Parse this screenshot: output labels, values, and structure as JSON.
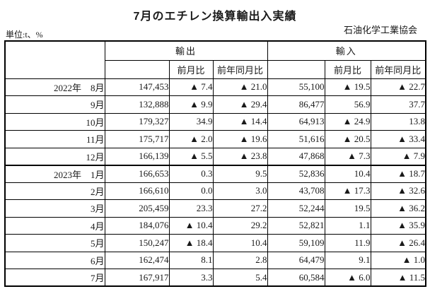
{
  "page": {
    "title": "7月のエチレン換算輸出入実績",
    "unit_label": "単位:t、%",
    "org_label": "石油化学工業協会"
  },
  "table": {
    "export_label": "輸出",
    "import_label": "輸入",
    "mom_label": "前月比",
    "yoy_label": "前年同月比",
    "rows": [
      {
        "year": "2022年",
        "month": "8月",
        "export_value": "147,453",
        "export_mom": "▲ 7.4",
        "export_yoy": "▲ 21.0",
        "import_value": "55,100",
        "import_mom": "▲ 19.5",
        "import_yoy": "▲ 22.7"
      },
      {
        "year": "",
        "month": "9月",
        "export_value": "132,888",
        "export_mom": "▲ 9.9",
        "export_yoy": "▲ 29.4",
        "import_value": "86,477",
        "import_mom": "56.9",
        "import_yoy": "37.7"
      },
      {
        "year": "",
        "month": "10月",
        "export_value": "179,327",
        "export_mom": "34.9",
        "export_yoy": "▲ 14.4",
        "import_value": "64,913",
        "import_mom": "▲ 24.9",
        "import_yoy": "13.8"
      },
      {
        "year": "",
        "month": "11月",
        "export_value": "175,717",
        "export_mom": "▲ 2.0",
        "export_yoy": "▲ 19.6",
        "import_value": "51,616",
        "import_mom": "▲ 20.5",
        "import_yoy": "▲ 33.4"
      },
      {
        "year": "",
        "month": "12月",
        "export_value": "166,139",
        "export_mom": "▲ 5.5",
        "export_yoy": "▲ 23.8",
        "import_value": "47,868",
        "import_mom": "▲ 7.3",
        "import_yoy": "▲ 7.9"
      },
      {
        "year": "2023年",
        "month": "1月",
        "export_value": "166,653",
        "export_mom": "0.3",
        "export_yoy": "9.5",
        "import_value": "52,836",
        "import_mom": "10.4",
        "import_yoy": "▲ 18.7"
      },
      {
        "year": "",
        "month": "2月",
        "export_value": "166,610",
        "export_mom": "0.0",
        "export_yoy": "3.0",
        "import_value": "43,708",
        "import_mom": "▲ 17.3",
        "import_yoy": "▲ 32.6"
      },
      {
        "year": "",
        "month": "3月",
        "export_value": "205,459",
        "export_mom": "23.3",
        "export_yoy": "27.2",
        "import_value": "52,244",
        "import_mom": "19.5",
        "import_yoy": "▲ 36.2"
      },
      {
        "year": "",
        "month": "4月",
        "export_value": "184,076",
        "export_mom": "▲ 10.4",
        "export_yoy": "29.2",
        "import_value": "52,821",
        "import_mom": "1.1",
        "import_yoy": "▲ 35.9"
      },
      {
        "year": "",
        "month": "5月",
        "export_value": "150,247",
        "export_mom": "▲ 18.4",
        "export_yoy": "10.4",
        "import_value": "59,109",
        "import_mom": "11.9",
        "import_yoy": "▲ 26.4"
      },
      {
        "year": "",
        "month": "6月",
        "export_value": "162,474",
        "export_mom": "8.1",
        "export_yoy": "2.8",
        "import_value": "64,479",
        "import_mom": "9.1",
        "import_yoy": "▲ 1.0"
      },
      {
        "year": "",
        "month": "7月",
        "export_value": "167,917",
        "export_mom": "3.3",
        "export_yoy": "5.4",
        "import_value": "60,584",
        "import_mom": "▲ 6.0",
        "import_yoy": "▲ 11.5"
      }
    ]
  }
}
